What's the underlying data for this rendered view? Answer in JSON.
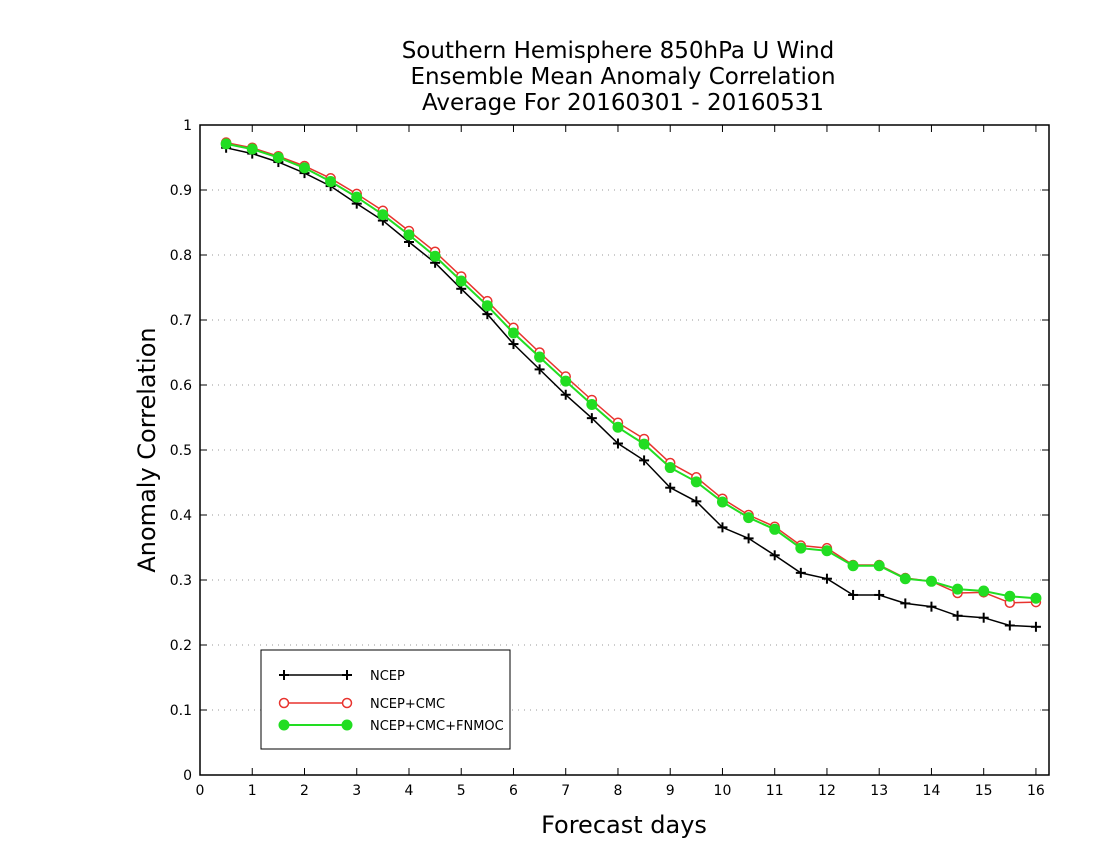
{
  "chart_data": {
    "type": "line",
    "title_lines": [
      "Southern Hemisphere 850hPa U Wind",
      "Ensemble Mean Anomaly Correlation",
      "Average For 20160301 - 20160531"
    ],
    "xlabel": "Forecast days",
    "ylabel": "Anomaly Correlation",
    "xlim": [
      0,
      16.25
    ],
    "ylim": [
      0,
      1
    ],
    "x_ticks": [
      0,
      1,
      2,
      3,
      4,
      5,
      6,
      7,
      8,
      9,
      10,
      11,
      12,
      13,
      14,
      15,
      16
    ],
    "y_ticks": [
      0,
      0.1,
      0.2,
      0.3,
      0.4,
      0.5,
      0.6,
      0.7,
      0.8,
      0.9,
      1
    ],
    "y_tick_labels": [
      "0",
      "0.1",
      "0.2",
      "0.3",
      "0.4",
      "0.5",
      "0.6",
      "0.7",
      "0.8",
      "0.9",
      "1"
    ],
    "grid": "horizontal dotted",
    "legend_position": "bottom-left",
    "x": [
      0.5,
      1,
      1.5,
      2,
      2.5,
      3,
      3.5,
      4,
      4.5,
      5,
      5.5,
      6,
      6.5,
      7,
      7.5,
      8,
      8.5,
      9,
      9.5,
      10,
      10.5,
      11,
      11.5,
      12,
      12.5,
      13,
      13.5,
      14,
      14.5,
      15,
      15.5,
      16
    ],
    "series": [
      {
        "name": "NCEP",
        "color": "#000000",
        "marker": "plus",
        "values": [
          0.965,
          0.956,
          0.943,
          0.926,
          0.906,
          0.879,
          0.853,
          0.82,
          0.788,
          0.748,
          0.709,
          0.663,
          0.624,
          0.585,
          0.549,
          0.51,
          0.484,
          0.442,
          0.421,
          0.381,
          0.364,
          0.338,
          0.311,
          0.302,
          0.277,
          0.277,
          0.264,
          0.259,
          0.245,
          0.242,
          0.23,
          0.228
        ]
      },
      {
        "name": "NCEP+CMC",
        "color": "#e8332e",
        "marker": "open-circle",
        "values": [
          0.973,
          0.965,
          0.952,
          0.937,
          0.918,
          0.894,
          0.868,
          0.837,
          0.805,
          0.767,
          0.729,
          0.688,
          0.65,
          0.613,
          0.577,
          0.542,
          0.517,
          0.48,
          0.458,
          0.425,
          0.4,
          0.382,
          0.353,
          0.349,
          0.323,
          0.323,
          0.303,
          0.298,
          0.28,
          0.281,
          0.265,
          0.266
        ]
      },
      {
        "name": "NCEP+CMC+FNMOC",
        "color": "#22dd22",
        "marker": "filled-circle",
        "values": [
          0.971,
          0.963,
          0.95,
          0.934,
          0.913,
          0.889,
          0.862,
          0.831,
          0.798,
          0.76,
          0.722,
          0.68,
          0.643,
          0.606,
          0.57,
          0.535,
          0.509,
          0.473,
          0.451,
          0.42,
          0.396,
          0.378,
          0.349,
          0.345,
          0.322,
          0.322,
          0.302,
          0.298,
          0.286,
          0.283,
          0.275,
          0.272
        ]
      }
    ]
  }
}
